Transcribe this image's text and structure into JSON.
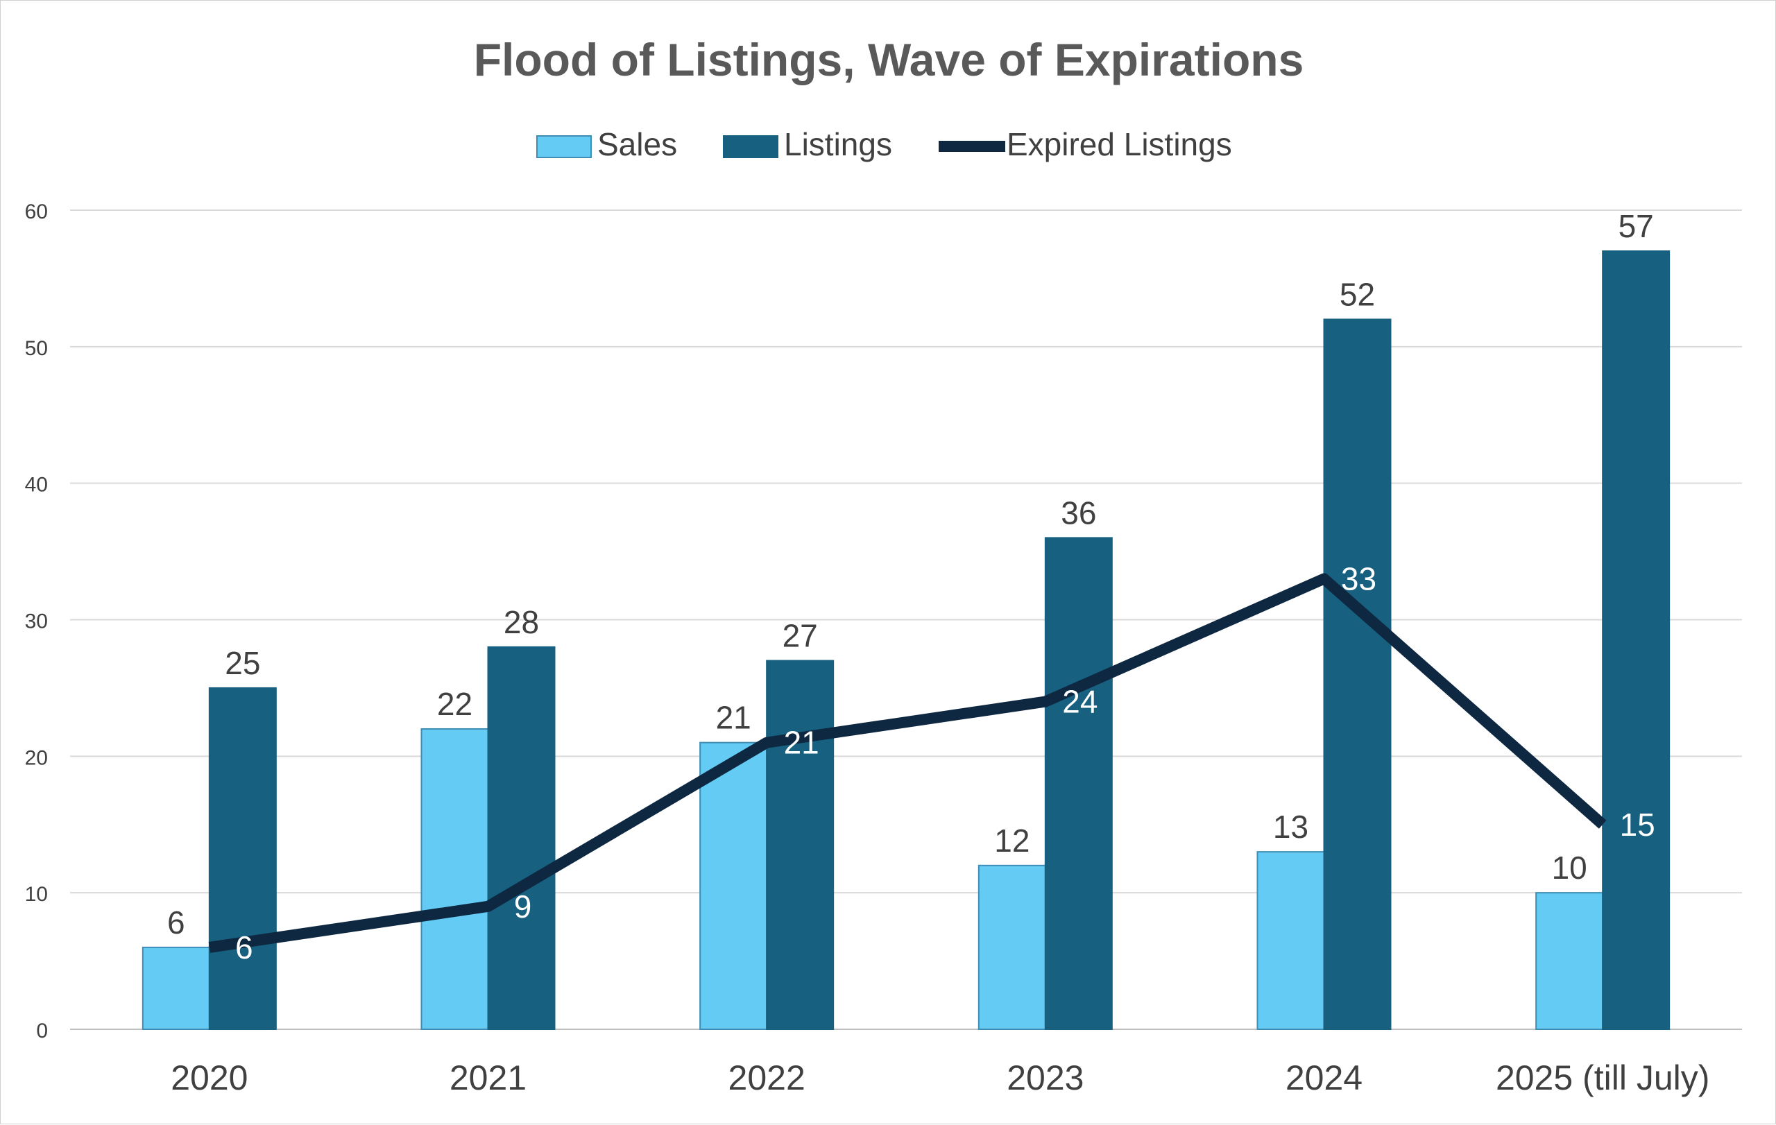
{
  "chart_data": {
    "type": "bar",
    "title": "Flood of Listings, Wave of Expirations",
    "categories": [
      "2020",
      "2021",
      "2022",
      "2023",
      "2024",
      "2025 (till July)"
    ],
    "series": [
      {
        "name": "Sales",
        "kind": "bar",
        "color": "#63CBF4",
        "values": [
          6,
          22,
          21,
          12,
          13,
          10
        ]
      },
      {
        "name": "Listings",
        "kind": "bar",
        "color": "#17607F",
        "values": [
          25,
          28,
          27,
          36,
          52,
          57
        ]
      },
      {
        "name": "Expired Listings",
        "kind": "line",
        "color": "#0E2841",
        "values": [
          6,
          9,
          21,
          24,
          33,
          15
        ]
      }
    ],
    "ylim": [
      0,
      60
    ],
    "yticks": [
      0,
      10,
      20,
      30,
      40,
      50,
      60
    ],
    "grid": true,
    "legend": "top-center",
    "xlabel": "",
    "ylabel": ""
  }
}
